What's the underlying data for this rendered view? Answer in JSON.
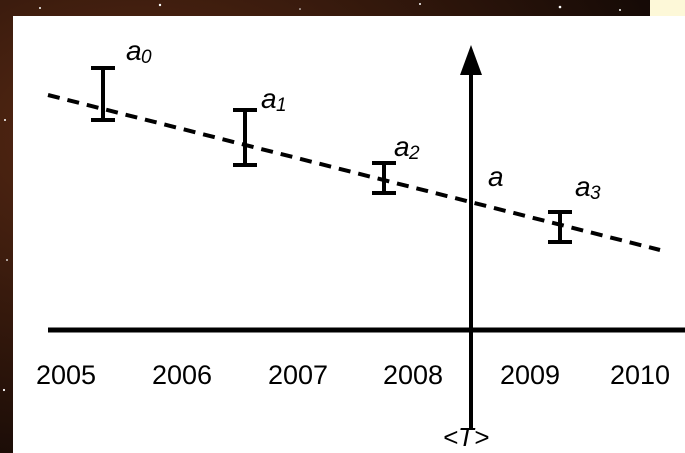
{
  "axis": {
    "years": [
      "2005",
      "2006",
      "2007",
      "2008",
      "2009",
      "2010"
    ],
    "vertical_label": "<T>"
  },
  "trend_label": "a",
  "estimates": [
    {
      "symbol": "a",
      "index": "0"
    },
    {
      "symbol": "a",
      "index": "1"
    },
    {
      "symbol": "a",
      "index": "2"
    },
    {
      "symbol": "a",
      "index": "3"
    }
  ]
}
